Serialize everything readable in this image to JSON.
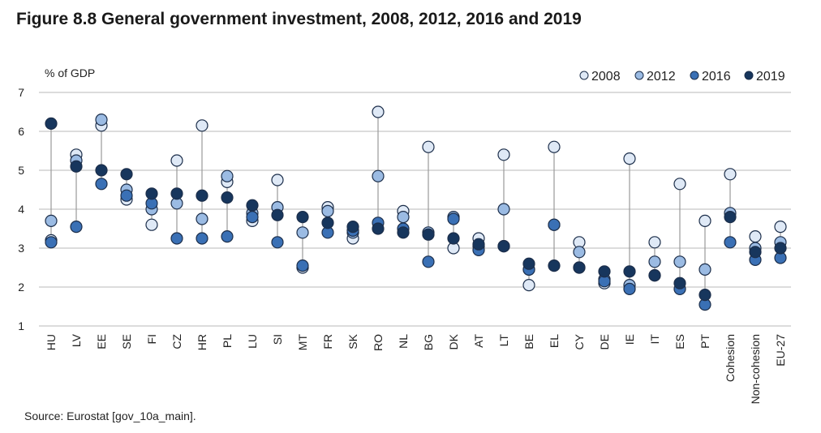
{
  "title": "Figure 8.8 General government investment, 2008, 2012, 2016 and 2019",
  "source": "Source: Eurostat [gov_10a_main].",
  "chart_data": {
    "type": "scatter",
    "ylabel": "% of GDP",
    "ylim": [
      1,
      7
    ],
    "yticks": [
      1,
      2,
      3,
      4,
      5,
      6,
      7
    ],
    "grid": true,
    "legend_position": "top-right",
    "categories": [
      "HU",
      "LV",
      "EE",
      "SE",
      "FI",
      "CZ",
      "HR",
      "PL",
      "LU",
      "SI",
      "MT",
      "FR",
      "SK",
      "RO",
      "NL",
      "BG",
      "DK",
      "AT",
      "LT",
      "BE",
      "EL",
      "CY",
      "DE",
      "IE",
      "IT",
      "ES",
      "PT",
      "Cohesion",
      "Non-cohesion",
      "EU-27"
    ],
    "series": [
      {
        "name": "2008",
        "color": "#dfe9f6",
        "values": [
          3.2,
          5.4,
          6.15,
          4.25,
          3.6,
          5.25,
          6.15,
          4.7,
          3.7,
          4.75,
          2.5,
          4.05,
          3.25,
          6.5,
          3.95,
          5.6,
          3.0,
          3.25,
          5.4,
          2.05,
          5.6,
          3.15,
          2.1,
          5.3,
          3.15,
          4.65,
          3.7,
          4.9,
          3.3,
          3.55
        ]
      },
      {
        "name": "2012",
        "color": "#9bbbe3",
        "values": [
          3.7,
          5.25,
          6.3,
          4.5,
          4.0,
          4.15,
          3.75,
          4.85,
          3.9,
          4.05,
          3.4,
          3.95,
          3.4,
          4.85,
          3.8,
          3.4,
          3.8,
          3.05,
          4.0,
          2.45,
          3.6,
          2.9,
          2.2,
          2.05,
          2.65,
          2.65,
          2.45,
          3.9,
          3.0,
          3.15
        ]
      },
      {
        "name": "2016",
        "color": "#3a70b5",
        "values": [
          3.15,
          3.55,
          4.65,
          4.35,
          4.15,
          3.25,
          3.25,
          3.3,
          3.8,
          3.15,
          2.55,
          3.4,
          3.45,
          3.65,
          3.5,
          2.65,
          3.75,
          2.95,
          3.05,
          2.45,
          3.6,
          2.5,
          2.15,
          1.95,
          2.3,
          1.95,
          1.55,
          3.15,
          2.7,
          2.75
        ]
      },
      {
        "name": "2019",
        "color": "#17365d",
        "values": [
          6.2,
          5.1,
          5.0,
          4.9,
          4.4,
          4.4,
          4.35,
          4.3,
          4.1,
          3.85,
          3.8,
          3.65,
          3.55,
          3.5,
          3.4,
          3.35,
          3.25,
          3.1,
          3.05,
          2.6,
          2.55,
          2.5,
          2.4,
          2.4,
          2.3,
          2.1,
          1.8,
          3.8,
          2.9,
          3.0
        ]
      }
    ]
  }
}
